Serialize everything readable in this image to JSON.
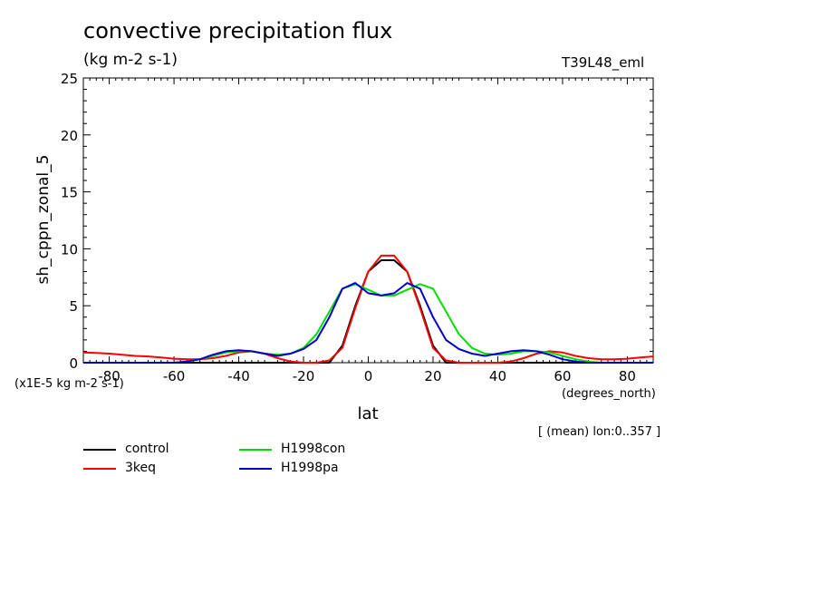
{
  "chart_data": {
    "type": "line",
    "title": "convective precipitation flux",
    "units_label": "(kg m-2 s-1)",
    "experiment": "T39L48_eml",
    "ylabel": "sh_cppn_zonal_5",
    "xlabel": "lat",
    "x_units": "(degrees_north)",
    "y_scale_note": "(x1E-5 kg m-2 s-1)",
    "mean_note": "[ (mean) lon:0..357 ]",
    "xlim": [
      -88,
      88
    ],
    "ylim": [
      0,
      25
    ],
    "x_ticks": [
      -80,
      -60,
      -40,
      -20,
      0,
      20,
      40,
      60,
      80
    ],
    "y_ticks": [
      0,
      5,
      10,
      15,
      20,
      25
    ],
    "x_tick_labels": [
      "-80",
      "-60",
      "-40",
      "-20",
      "0",
      "20",
      "40",
      "60",
      "80"
    ],
    "y_tick_labels": [
      "0",
      "5",
      "10",
      "15",
      "20",
      "25"
    ],
    "x": [
      -88,
      -84,
      -80,
      -76,
      -72,
      -68,
      -64,
      -60,
      -56,
      -52,
      -48,
      -44,
      -40,
      -36,
      -32,
      -28,
      -24,
      -20,
      -16,
      -12,
      -8,
      -4,
      0,
      4,
      8,
      12,
      16,
      20,
      24,
      28,
      32,
      36,
      40,
      44,
      48,
      52,
      56,
      60,
      64,
      68,
      72,
      76,
      80,
      84,
      88
    ],
    "series": [
      {
        "name": "control",
        "color": "#000000",
        "values": [
          0.0,
          0.0,
          0.0,
          0.0,
          0.0,
          0.0,
          0.0,
          0.0,
          0.0,
          0.0,
          0.0,
          0.0,
          0.0,
          0.0,
          0.0,
          0.0,
          0.0,
          0.0,
          0.0,
          0.0,
          1.5,
          5.0,
          8.0,
          9.0,
          9.0,
          8.0,
          5.0,
          1.5,
          0.0,
          0.0,
          0.0,
          0.0,
          0.0,
          0.0,
          0.0,
          0.0,
          0.0,
          0.0,
          0.0,
          0.0,
          0.0,
          0.0,
          0.0,
          0.0,
          0.0
        ]
      },
      {
        "name": "3keq",
        "color": "#ff0000",
        "values": [
          0.9,
          0.85,
          0.8,
          0.7,
          0.6,
          0.55,
          0.45,
          0.35,
          0.3,
          0.3,
          0.4,
          0.6,
          0.9,
          1.0,
          0.8,
          0.4,
          0.1,
          0.0,
          0.0,
          0.2,
          1.3,
          4.8,
          8.0,
          9.4,
          9.4,
          8.0,
          4.8,
          1.3,
          0.2,
          0.0,
          0.0,
          0.0,
          0.0,
          0.1,
          0.4,
          0.8,
          1.0,
          0.9,
          0.6,
          0.4,
          0.3,
          0.3,
          0.35,
          0.45,
          0.55
        ]
      },
      {
        "name": "H1998con",
        "color": "#00dd00",
        "values": [
          0.0,
          0.0,
          0.0,
          0.0,
          0.0,
          0.0,
          0.0,
          0.0,
          0.1,
          0.3,
          0.6,
          0.9,
          1.0,
          1.0,
          0.8,
          0.7,
          0.8,
          1.3,
          2.5,
          4.5,
          6.5,
          6.9,
          6.4,
          5.9,
          5.9,
          6.4,
          6.9,
          6.5,
          4.5,
          2.5,
          1.3,
          0.8,
          0.7,
          0.8,
          1.0,
          1.0,
          0.9,
          0.6,
          0.3,
          0.1,
          0.0,
          0.0,
          0.0,
          0.0,
          0.0
        ]
      },
      {
        "name": "H1998pa",
        "color": "#0000cc",
        "values": [
          0.0,
          0.0,
          0.0,
          0.0,
          0.0,
          0.0,
          0.0,
          0.0,
          0.1,
          0.3,
          0.7,
          1.0,
          1.1,
          1.0,
          0.8,
          0.6,
          0.8,
          1.2,
          2.0,
          4.0,
          6.5,
          7.0,
          6.1,
          5.9,
          6.1,
          7.0,
          6.5,
          4.0,
          2.0,
          1.2,
          0.8,
          0.6,
          0.8,
          1.0,
          1.1,
          1.0,
          0.7,
          0.3,
          0.1,
          0.0,
          0.0,
          0.0,
          0.0,
          0.0,
          0.0
        ]
      }
    ]
  }
}
